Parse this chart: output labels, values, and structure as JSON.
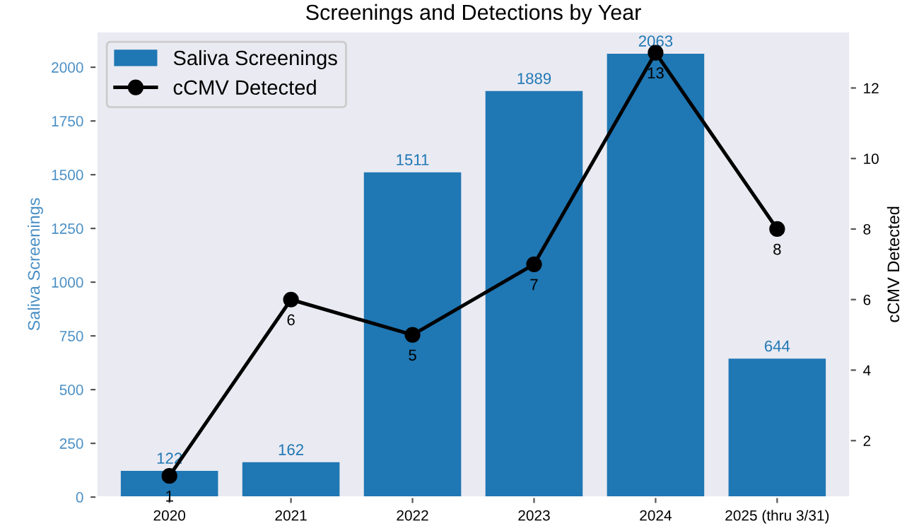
{
  "chart_data": {
    "type": "bar",
    "title": "Screenings and Detections by Year",
    "categories": [
      "2020",
      "2021",
      "2022",
      "2023",
      "2024",
      "2025 (thru 3/31)"
    ],
    "series": [
      {
        "name": "Saliva Screenings",
        "color": "#1f77b4",
        "values": [
          122,
          162,
          1511,
          1889,
          2063,
          644
        ]
      },
      {
        "name": "cCMV Detected",
        "type": "line",
        "axis": "y2",
        "color": "#000000",
        "marker": "circle",
        "line_style": "solid",
        "values": [
          1,
          6,
          5,
          7,
          13,
          8
        ]
      }
    ],
    "ylabel": "Saliva Screenings",
    "y2label": "cCMV Detected",
    "ylim": [
      0,
      2166
    ],
    "yticks": [
      0,
      250,
      500,
      750,
      1000,
      1250,
      1500,
      1750,
      2000
    ],
    "y2lim": [
      0.4,
      13.6
    ],
    "y2ticks": [
      2,
      4,
      6,
      8,
      10,
      12
    ],
    "data_labels": true,
    "grid": false,
    "legend": "top left"
  }
}
